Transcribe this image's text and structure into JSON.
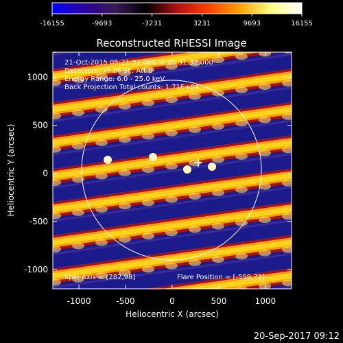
{
  "colorbar": {
    "tick_labels": [
      "-16155",
      "-9693",
      "-3231",
      "3231",
      "9693",
      "16155"
    ],
    "min": -16155,
    "max": 16155,
    "colors": [
      "#0000ff",
      "#2b00a0",
      "#3a1a55",
      "#000000",
      "#b01010",
      "#ff4000",
      "#ffa000",
      "#ffff80",
      "#ffffff"
    ]
  },
  "image": {
    "title": "Reconstructed RHESSI Image",
    "x_label": "Heliocentric X (arcsec)",
    "y_label": "Heliocentric Y (arcsec)",
    "x_ticks": [
      "-1000",
      "-500",
      "0",
      "500",
      "1000"
    ],
    "y_ticks": [
      "1000",
      "500",
      "0",
      "-500",
      "-1000"
    ],
    "x_tick_values": [
      -1000,
      -500,
      0,
      500,
      1000
    ],
    "y_tick_values": [
      1000,
      500,
      0,
      -500,
      -1000
    ],
    "x_range": [
      -1280,
      1280
    ],
    "y_range": [
      -1200,
      1260
    ],
    "info_lines": [
      "21-Oct-2015 05:21:32.000 to 05:31:32.000",
      "Detectors: 7F 8F 9F, Att 0",
      "Energy Range: 6.0 - 25.0 keV",
      "Back Projection    Total counts: 1.71E+04"
    ],
    "spin_axis": "Spin Axis = [282,98]",
    "flare_position": "Flare Position = [-559,72]",
    "colors": {
      "band_bright": "#ffd21e",
      "band_dark": "#1b1b8c",
      "core": "#ffffff"
    }
  },
  "timestamp": "20-Sep-2017 09:12"
}
